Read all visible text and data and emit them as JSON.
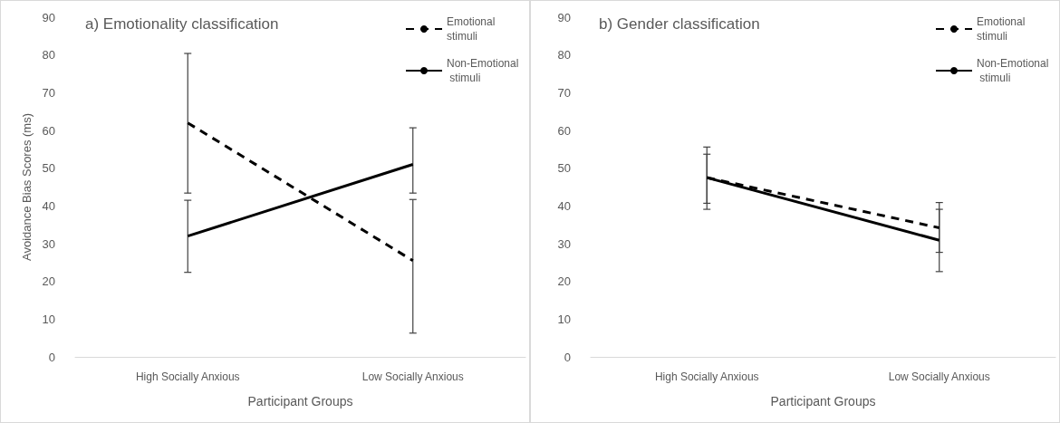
{
  "chart_data": [
    {
      "type": "line",
      "title": "a) Emotionality classification",
      "xlabel": "Participant Groups",
      "ylabel": "Avoidance Bias Scores (ms)",
      "categories": [
        "High Socially Anxious",
        "Low Socially Anxious"
      ],
      "series": [
        {
          "name": "Emotional stimuli",
          "color": "#000000",
          "line_style": "dashed",
          "values": [
            62,
            25.5
          ],
          "errors": [
            [
              43.4,
              80.4
            ],
            [
              6.3,
              41.7
            ]
          ]
        },
        {
          "name": "Non-Emotional stimuli",
          "color": "#000000",
          "line_style": "solid",
          "values": [
            32,
            51
          ],
          "errors": [
            [
              22.4,
              41.5
            ],
            [
              43.4,
              60.7
            ]
          ]
        }
      ],
      "ylim": [
        0,
        90
      ],
      "yticks": [
        0,
        10,
        20,
        30,
        40,
        50,
        60,
        70,
        80,
        90
      ],
      "legend": "top right",
      "marker": "none"
    },
    {
      "type": "line",
      "title": "b) Gender classification",
      "xlabel": "Participant Groups",
      "categories": [
        "High Socially Anxious",
        "Low Socially Anxious"
      ],
      "series": [
        {
          "name": "Emotional stimuli",
          "color": "#000000",
          "line_style": "dashed",
          "values": [
            47.5,
            34.2
          ],
          "errors": [
            [
              39.1,
              55.6
            ],
            [
              27.7,
              40.9
            ]
          ]
        },
        {
          "name": "Non-Emotional stimuli",
          "color": "#000000",
          "line_style": "solid",
          "values": [
            47.5,
            30.9
          ],
          "errors": [
            [
              40.7,
              53.7
            ],
            [
              22.6,
              39.1
            ]
          ]
        }
      ],
      "ylim": [
        0,
        90
      ],
      "yticks": [
        0,
        10,
        20,
        30,
        40,
        50,
        60,
        70,
        80,
        90
      ],
      "legend": "top right",
      "marker": "none"
    }
  ]
}
